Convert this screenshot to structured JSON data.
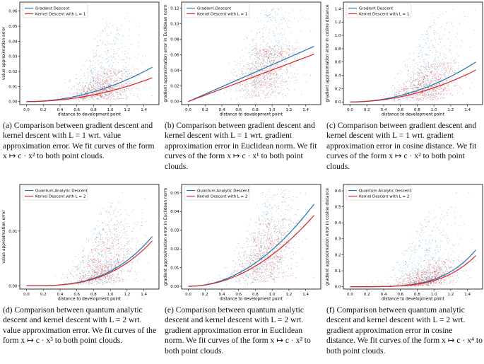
{
  "colors": {
    "gradient": "#1f77b4",
    "kernel": "#d62728"
  },
  "chart_data": [
    {
      "id": "a",
      "type": "scatter",
      "legend": [
        "Gradient Descent",
        "Kernel Descent with L = 1"
      ],
      "ylabel": "value approximation error",
      "xlabel": "distance to development point",
      "xticks": [
        "0.0",
        "0.2",
        "0.4",
        "0.6",
        "0.8",
        "1.0",
        "1.2",
        "1.4"
      ],
      "yticks": [
        "0.00",
        "0.01",
        "0.02",
        "0.03",
        "0.04",
        "0.05",
        "0.06"
      ],
      "xlim": [
        -0.08,
        1.58
      ],
      "ylim": [
        -0.002,
        0.066
      ],
      "fit": {
        "power": 2,
        "series": [
          {
            "name": "Gradient Descent",
            "end": 0.0228
          },
          {
            "name": "Kernel Descent with L = 1",
            "end": 0.0158
          }
        ]
      },
      "clouds": [
        {
          "name": "Gradient Descent",
          "center": 0.92,
          "spread": 0.2,
          "ymax": 0.06
        },
        {
          "name": "Kernel Descent with L = 1",
          "center": 0.92,
          "spread": 0.18,
          "ymax": 0.022
        }
      ],
      "caption": "(a) Comparison between gradient descent and kernel descent with L = 1 wrt. value approximation error. We fit curves of the form x ↦ c · x² to both point clouds."
    },
    {
      "id": "b",
      "type": "scatter",
      "legend": [
        "Gradient Descent",
        "Kernel Descent with L = 1"
      ],
      "ylabel": "gradient approximation error in Euclidean norm",
      "xlabel": "distance to development point",
      "xticks": [
        "0.0",
        "0.2",
        "0.4",
        "0.6",
        "0.8",
        "1.0",
        "1.2",
        "1.4"
      ],
      "yticks": [
        "0.00",
        "0.02",
        "0.04",
        "0.06",
        "0.08",
        "0.10",
        "0.12"
      ],
      "xlim": [
        -0.08,
        1.58
      ],
      "ylim": [
        -0.004,
        0.128
      ],
      "fit": {
        "power": 1,
        "series": [
          {
            "name": "Gradient Descent",
            "end": 0.071
          },
          {
            "name": "Kernel Descent with L = 1",
            "end": 0.061
          }
        ]
      },
      "clouds": [
        {
          "name": "Gradient Descent",
          "center": 0.92,
          "spread": 0.2,
          "ymax": 0.12
        },
        {
          "name": "Kernel Descent with L = 1",
          "center": 0.92,
          "spread": 0.18,
          "ymax": 0.07
        }
      ],
      "caption": "(b) Comparison between gradient descent and kernel descent with L = 1 wrt. gradient approximation error in Euclidean norm. We fit curves of the form x ↦ c · x¹ to both point clouds."
    },
    {
      "id": "c",
      "type": "scatter",
      "legend": [
        "Gradient Descent",
        "Kernel Descent with L = 1"
      ],
      "ylabel": "gradient approximation error in cosine distance",
      "xlabel": "distance to development point",
      "xticks": [
        "0.0",
        "0.2",
        "0.4",
        "0.6",
        "0.8",
        "1.0",
        "1.2",
        "1.4"
      ],
      "yticks": [
        "0.0",
        "0.2",
        "0.4",
        "0.6",
        "0.8",
        "1.0",
        "1.2",
        "1.4"
      ],
      "xlim": [
        -0.08,
        1.58
      ],
      "ylim": [
        -0.04,
        1.5
      ],
      "fit": {
        "power": 2,
        "series": [
          {
            "name": "Gradient Descent",
            "end": 0.6
          },
          {
            "name": "Kernel Descent with L = 1",
            "end": 0.48
          }
        ]
      },
      "clouds": [
        {
          "name": "Gradient Descent",
          "center": 0.92,
          "spread": 0.2,
          "ymax": 1.4
        },
        {
          "name": "Kernel Descent with L = 1",
          "center": 0.92,
          "spread": 0.18,
          "ymax": 0.6
        }
      ],
      "caption": "(c) Comparison between gradient descent and kernel descent with L = 1 wrt. gradient approximation error in cosine distance. We fit curves of the form x ↦ c · x² to both point clouds."
    },
    {
      "id": "d",
      "type": "scatter",
      "legend": [
        "Quantum Analytic Descent",
        "Kernel Descent with L = 2"
      ],
      "ylabel": "value approximation error",
      "xlabel": "distance to development point",
      "xticks": [
        "0.0",
        "0.2",
        "0.4",
        "0.6",
        "0.8",
        "1.0",
        "1.2",
        "1.4"
      ],
      "yticks": [
        "0.00",
        "0.01"
      ],
      "xlim": [
        -0.08,
        1.58
      ],
      "ylim": [
        -0.0006,
        0.0185
      ],
      "fit": {
        "power": 3,
        "series": [
          {
            "name": "Quantum Analytic Descent",
            "end": 0.009
          },
          {
            "name": "Kernel Descent with L = 2",
            "end": 0.0082
          }
        ]
      },
      "clouds": [
        {
          "name": "Quantum Analytic Descent",
          "center": 0.92,
          "spread": 0.2,
          "ymax": 0.017
        },
        {
          "name": "Kernel Descent with L = 2",
          "center": 0.92,
          "spread": 0.18,
          "ymax": 0.012
        }
      ],
      "caption": "(d) Comparison between quantum analytic descent and kernel descent with L = 2 wrt. value approximation error. We fit curves of the form x ↦ c · x³ to both point clouds."
    },
    {
      "id": "e",
      "type": "scatter",
      "legend": [
        "Quantum Analytic Descent",
        "Kernel Descent with L = 2"
      ],
      "ylabel": "gradient approximation error in Euclidean norm",
      "xlabel": "distance to development point",
      "xticks": [
        "0.0",
        "0.2",
        "0.4",
        "0.6",
        "0.8",
        "1.0",
        "1.2",
        "1.4"
      ],
      "yticks": [
        "0.00",
        "0.01",
        "0.02",
        "0.03",
        "0.04",
        "0.05"
      ],
      "xlim": [
        -0.08,
        1.58
      ],
      "ylim": [
        -0.0015,
        0.0545
      ],
      "fit": {
        "power": 2,
        "series": [
          {
            "name": "Quantum Analytic Descent",
            "end": 0.044
          },
          {
            "name": "Kernel Descent with L = 2",
            "end": 0.038
          }
        ]
      },
      "clouds": [
        {
          "name": "Quantum Analytic Descent",
          "center": 0.92,
          "spread": 0.2,
          "ymax": 0.052
        },
        {
          "name": "Kernel Descent with L = 2",
          "center": 0.92,
          "spread": 0.18,
          "ymax": 0.036
        }
      ],
      "caption": "(e) Comparison between quantum analytic descent and kernel descent with L = 2 wrt. gradient approximation error in Euclidean norm. We fit curves of the form x ↦ c · x² to both point clouds."
    },
    {
      "id": "f",
      "type": "scatter",
      "legend": [
        "Quantum Analytic Descent",
        "Kernel Descent with L = 2"
      ],
      "ylabel": "gradient approximation error in cosine distance",
      "xlabel": "distance to development point",
      "xticks": [
        "0.0",
        "0.2",
        "0.4",
        "0.6",
        "0.8",
        "1.0",
        "1.2",
        "1.4"
      ],
      "yticks": [
        "0.0",
        "0.1",
        "0.2",
        "0.3",
        "0.4",
        "0.5",
        "0.6"
      ],
      "xlim": [
        -0.08,
        1.58
      ],
      "ylim": [
        -0.015,
        0.64
      ],
      "fit": {
        "power": 4,
        "series": [
          {
            "name": "Quantum Analytic Descent",
            "end": 0.23
          },
          {
            "name": "Kernel Descent with L = 2",
            "end": 0.195
          }
        ]
      },
      "clouds": [
        {
          "name": "Quantum Analytic Descent",
          "center": 0.92,
          "spread": 0.2,
          "ymax": 0.6
        },
        {
          "name": "Kernel Descent with L = 2",
          "center": 0.92,
          "spread": 0.18,
          "ymax": 0.17
        }
      ],
      "caption": "(f) Comparison between quantum analytic descent and kernel descent with L = 2 wrt. gradient approximation error in cosine distance. We fit curves of the form x ↦ c · x⁴ to both point clouds."
    }
  ]
}
